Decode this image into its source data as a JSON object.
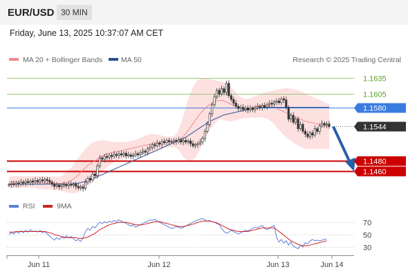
{
  "header": {
    "symbol": "EUR/USD",
    "timeframe": "30 MIN"
  },
  "datetime": "Friday, June 13, 2025 10:37:07 AM CET",
  "legend": {
    "items": [
      {
        "label": "MA 20 + Bollinger Bands",
        "color": "#f08a8a"
      },
      {
        "label": "MA 50",
        "color": "#2a4f8f"
      }
    ],
    "credit": "Research © 2025 Trading Central"
  },
  "colors": {
    "candle": "#333333",
    "ma20": "#f08a8a",
    "band_fill": "#fde0e0",
    "ma50": "#3a5f9f",
    "resistance": "#99c87a",
    "resistance_text": "#5a9e2a",
    "pivot": "#3a7be0",
    "support": "#cc0000",
    "rsi": "#5b7fd6",
    "rsi_ma": "#cc2222"
  },
  "chart_data": [
    {
      "type": "candlestick",
      "title": "EUR/USD",
      "timeframe": "30 MIN",
      "x_ticks": [
        "Jun 11",
        "Jun 12",
        "Jun 13",
        "Jun 14"
      ],
      "ylim": [
        1.1432,
        1.1652
      ],
      "current_price": 1.1544,
      "levels": [
        {
          "label": "1.1635",
          "value": 1.1635,
          "kind": "resistance"
        },
        {
          "label": "1.1605",
          "value": 1.1605,
          "kind": "resistance"
        },
        {
          "label": "1.1580",
          "value": 1.158,
          "kind": "pivot"
        },
        {
          "label": "1.1480",
          "value": 1.148,
          "kind": "support"
        },
        {
          "label": "1.1460",
          "value": 1.146,
          "kind": "support"
        }
      ],
      "closes": [
        1.1435,
        1.1437,
        1.1435,
        1.1438,
        1.1436,
        1.144,
        1.1438,
        1.1441,
        1.1439,
        1.1442,
        1.144,
        1.1443,
        1.1441,
        1.1444,
        1.1442,
        1.1445,
        1.1443,
        1.144,
        1.1436,
        1.1432,
        1.1434,
        1.1431,
        1.1433,
        1.1435,
        1.1433,
        1.1436,
        1.1434,
        1.1436,
        1.1432,
        1.1429,
        1.1431,
        1.1428,
        1.144,
        1.1447,
        1.1444,
        1.1455,
        1.1452,
        1.147,
        1.1485,
        1.1483,
        1.1488,
        1.1486,
        1.149,
        1.1488,
        1.1492,
        1.149,
        1.1493,
        1.1491,
        1.1494,
        1.1489,
        1.1491,
        1.1488,
        1.149,
        1.1493,
        1.1491,
        1.1495,
        1.1498,
        1.1496,
        1.1502,
        1.1505,
        1.151,
        1.1508,
        1.1513,
        1.1511,
        1.1516,
        1.1514,
        1.1518,
        1.1516,
        1.1515,
        1.1518,
        1.1516,
        1.1519,
        1.1515,
        1.1518,
        1.1515,
        1.1517,
        1.1512,
        1.1508,
        1.151,
        1.1512,
        1.1515,
        1.1522,
        1.1535,
        1.1548,
        1.1568,
        1.1585,
        1.16,
        1.1612,
        1.1605,
        1.1615,
        1.1608,
        1.1625,
        1.1602,
        1.1595,
        1.1588,
        1.1582,
        1.1578,
        1.158,
        1.1576,
        1.1579,
        1.1575,
        1.1578,
        1.1576,
        1.1579,
        1.1582,
        1.158,
        1.1583,
        1.1581,
        1.1585,
        1.1588,
        1.1586,
        1.159,
        1.1592,
        1.1589,
        1.1596,
        1.1594,
        1.158,
        1.1558,
        1.1565,
        1.1552,
        1.1558,
        1.154,
        1.1548,
        1.1535,
        1.153,
        1.1525,
        1.1532,
        1.1528,
        1.154,
        1.1535,
        1.1545,
        1.155,
        1.1547,
        1.1549,
        1.1544
      ],
      "ma20": [
        1.144,
        1.144,
        1.144,
        1.144,
        1.144,
        1.144,
        1.144,
        1.144,
        1.144,
        1.144,
        1.144,
        1.144,
        1.1439,
        1.1439,
        1.1439,
        1.1438,
        1.1438,
        1.1438,
        1.1438,
        1.1437,
        1.1437,
        1.1437,
        1.1437,
        1.1438,
        1.1439,
        1.1441,
        1.1443,
        1.1446,
        1.1449,
        1.1453,
        1.1458,
        1.1463,
        1.1467,
        1.1471,
        1.1474,
        1.1477,
        1.148,
        1.1483,
        1.1486,
        1.1489,
        1.1491,
        1.1493,
        1.1494,
        1.1495,
        1.1496,
        1.1497,
        1.1498,
        1.1499,
        1.15,
        1.1501,
        1.1502,
        1.1503,
        1.1504,
        1.1505,
        1.1506,
        1.1507,
        1.1508,
        1.1509,
        1.151,
        1.1511,
        1.1512,
        1.1513,
        1.1513,
        1.1514,
        1.1514,
        1.1515,
        1.1515,
        1.1515,
        1.1515,
        1.1516,
        1.1517,
        1.1519,
        1.1522,
        1.1526,
        1.1531,
        1.1537,
        1.1543,
        1.155,
        1.1556,
        1.1562,
        1.1568,
        1.1573,
        1.1578,
        1.1582,
        1.1585,
        1.1588,
        1.159,
        1.1592,
        1.1593,
        1.1593,
        1.1592,
        1.159,
        1.1588,
        1.1586,
        1.1584,
        1.1582,
        1.158,
        1.1579,
        1.1578,
        1.1578,
        1.1578,
        1.1579,
        1.158,
        1.1581,
        1.1582,
        1.1583,
        1.1584,
        1.1584,
        1.1584,
        1.1583,
        1.1582,
        1.158,
        1.1578,
        1.1576,
        1.1574,
        1.1572,
        1.157,
        1.1568,
        1.1566,
        1.1564,
        1.1562,
        1.156,
        1.1558,
        1.1556,
        1.1554,
        1.1553,
        1.1552,
        1.1551,
        1.155,
        1.1549,
        1.1548,
        1.1547,
        1.1546,
        1.1545,
        1.1544
      ],
      "ma50": [
        1.1436,
        1.1436,
        1.1436,
        1.1436,
        1.1436,
        1.1436,
        1.1436,
        1.1436,
        1.1436,
        1.1436,
        1.1436,
        1.1436,
        1.1436,
        1.1436,
        1.1436,
        1.1436,
        1.1436,
        1.1436,
        1.1436,
        1.1436,
        1.1436,
        1.1436,
        1.1436,
        1.1436,
        1.1436,
        1.1436,
        1.1436,
        1.1437,
        1.1437,
        1.1438,
        1.1439,
        1.144,
        1.1441,
        1.1442,
        1.1444,
        1.1446,
        1.1448,
        1.145,
        1.1452,
        1.1454,
        1.1456,
        1.1458,
        1.146,
        1.1462,
        1.1464,
        1.1466,
        1.1468,
        1.147,
        1.1472,
        1.1474,
        1.1476,
        1.1478,
        1.148,
        1.1482,
        1.1484,
        1.1486,
        1.1488,
        1.149,
        1.1492,
        1.1494,
        1.1496,
        1.1498,
        1.15,
        1.1502,
        1.1504,
        1.1506,
        1.1508,
        1.151,
        1.1512,
        1.1514,
        1.1516,
        1.1518,
        1.152,
        1.1522,
        1.1524,
        1.1527,
        1.153,
        1.1533,
        1.1536,
        1.1539,
        1.1542,
        1.1545,
        1.1548,
        1.1551,
        1.1554,
        1.1556,
        1.1558,
        1.156,
        1.1562,
        1.1564,
        1.1566,
        1.1567,
        1.1568,
        1.1569,
        1.157,
        1.1571,
        1.1572,
        1.1573,
        1.1574,
        1.1575,
        1.1576,
        1.1577,
        1.1578,
        1.1578,
        1.1579,
        1.1579,
        1.158,
        1.158,
        1.158,
        1.158,
        1.158,
        1.158,
        1.158,
        1.158,
        1.158,
        1.158,
        1.158,
        1.158,
        1.158,
        1.158,
        1.158,
        1.158,
        1.158,
        1.158,
        1.158,
        1.158,
        1.158,
        1.158,
        1.158,
        1.158,
        1.158,
        1.158,
        1.158,
        1.158,
        1.158
      ],
      "band_upper": [
        1.145,
        1.145,
        1.1451,
        1.1451,
        1.1451,
        1.1451,
        1.1451,
        1.1451,
        1.1451,
        1.1451,
        1.1451,
        1.1451,
        1.1451,
        1.1451,
        1.1451,
        1.145,
        1.145,
        1.145,
        1.145,
        1.145,
        1.145,
        1.145,
        1.1451,
        1.1454,
        1.1458,
        1.1462,
        1.1467,
        1.1473,
        1.1479,
        1.1485,
        1.1491,
        1.1497,
        1.1502,
        1.1507,
        1.1511,
        1.1514,
        1.1516,
        1.1517,
        1.1518,
        1.1518,
        1.1518,
        1.1518,
        1.1517,
        1.1516,
        1.1515,
        1.1515,
        1.1515,
        1.1515,
        1.1515,
        1.1515,
        1.1516,
        1.1517,
        1.1518,
        1.1519,
        1.1521,
        1.1523,
        1.1525,
        1.1527,
        1.1529,
        1.153,
        1.153,
        1.153,
        1.1529,
        1.1528,
        1.1527,
        1.1526,
        1.1525,
        1.1525,
        1.1525,
        1.1526,
        1.153,
        1.1538,
        1.155,
        1.1565,
        1.158,
        1.1595,
        1.1608,
        1.1618,
        1.1626,
        1.1631,
        1.1634,
        1.1635,
        1.1635,
        1.1634,
        1.1633,
        1.1632,
        1.1631,
        1.163,
        1.1629,
        1.1628,
        1.1627,
        1.1625,
        1.1622,
        1.1618,
        1.1613,
        1.1608,
        1.1603,
        1.1599,
        1.1597,
        1.1596,
        1.1596,
        1.1597,
        1.1599,
        1.1601,
        1.1603,
        1.1605,
        1.1607,
        1.1608,
        1.1609,
        1.161,
        1.1611,
        1.1612,
        1.1613,
        1.1614,
        1.1615,
        1.1616,
        1.1616,
        1.1616,
        1.1615,
        1.1614,
        1.1613,
        1.1612,
        1.161,
        1.1608,
        1.1606,
        1.1604,
        1.1602,
        1.16,
        1.1598,
        1.1596,
        1.1594,
        1.1592,
        1.159,
        1.1588,
        1.1586
      ],
      "band_lower": [
        1.143,
        1.143,
        1.1429,
        1.1429,
        1.1429,
        1.1429,
        1.1429,
        1.1429,
        1.1429,
        1.1429,
        1.1429,
        1.1429,
        1.1427,
        1.1427,
        1.1427,
        1.1426,
        1.1426,
        1.1426,
        1.1426,
        1.1424,
        1.1424,
        1.1424,
        1.1423,
        1.1422,
        1.142,
        1.142,
        1.1419,
        1.1419,
        1.1419,
        1.1421,
        1.1425,
        1.1429,
        1.1432,
        1.1435,
        1.1437,
        1.144,
        1.1444,
        1.1449,
        1.1454,
        1.146,
        1.1464,
        1.1468,
        1.1471,
        1.1474,
        1.1477,
        1.1479,
        1.1481,
        1.1483,
        1.1485,
        1.1487,
        1.1488,
        1.1489,
        1.149,
        1.1491,
        1.1491,
        1.1491,
        1.1491,
        1.1491,
        1.1491,
        1.1492,
        1.1494,
        1.1496,
        1.1497,
        1.15,
        1.1501,
        1.1504,
        1.1505,
        1.1505,
        1.1505,
        1.1506,
        1.1504,
        1.15,
        1.1494,
        1.1487,
        1.1482,
        1.1479,
        1.1478,
        1.1482,
        1.1486,
        1.1493,
        1.1502,
        1.1511,
        1.1521,
        1.153,
        1.1537,
        1.1544,
        1.1549,
        1.1554,
        1.1557,
        1.1558,
        1.1557,
        1.1555,
        1.1554,
        1.1554,
        1.1555,
        1.1556,
        1.1557,
        1.1559,
        1.1559,
        1.156,
        1.156,
        1.1561,
        1.1561,
        1.1561,
        1.1561,
        1.1561,
        1.1561,
        1.156,
        1.1559,
        1.1556,
        1.1553,
        1.1548,
        1.1543,
        1.1538,
        1.1533,
        1.1528,
        1.1524,
        1.152,
        1.1517,
        1.1514,
        1.1511,
        1.1508,
        1.1506,
        1.1504,
        1.1502,
        1.1502,
        1.1502,
        1.1502,
        1.1502,
        1.1502,
        1.1502,
        1.1502,
        1.1502,
        1.1502,
        1.1502
      ]
    },
    {
      "type": "line",
      "title": "RSI",
      "legend": [
        "RSI",
        "9MA"
      ],
      "ylim": [
        22,
        78
      ],
      "y_ticks": [
        70,
        50,
        30
      ],
      "series": [
        {
          "name": "RSI",
          "values": [
            50,
            53,
            51,
            55,
            52,
            56,
            53,
            57,
            54,
            58,
            55,
            56,
            54,
            57,
            53,
            55,
            51,
            48,
            44,
            41,
            45,
            42,
            46,
            44,
            48,
            45,
            47,
            43,
            40,
            42,
            39,
            45,
            55,
            60,
            57,
            63,
            61,
            66,
            70,
            68,
            71,
            69,
            72,
            70,
            73,
            71,
            74,
            72,
            70,
            68,
            66,
            64,
            66,
            62,
            64,
            66,
            68,
            70,
            72,
            74,
            73,
            75,
            72,
            70,
            68,
            66,
            64,
            62,
            60,
            61,
            63,
            62,
            60,
            62,
            64,
            66,
            68,
            70,
            72,
            74,
            75,
            76,
            74,
            72,
            73,
            71,
            70,
            68,
            66,
            60,
            55,
            52,
            54,
            57,
            55,
            53,
            51,
            53,
            55,
            57,
            56,
            58,
            60,
            62,
            61,
            63,
            65,
            60,
            58,
            60,
            63,
            65,
            45,
            38,
            42,
            36,
            40,
            33,
            38,
            31,
            29,
            27,
            33,
            30,
            37,
            35,
            40,
            42,
            40,
            41,
            40,
            41,
            42,
            43
          ]
        },
        {
          "name": "9MA",
          "values": [
            54,
            54,
            54,
            55,
            55,
            55,
            55,
            55,
            55,
            55,
            55,
            55,
            55,
            55,
            55,
            55,
            54,
            53,
            52,
            50,
            49,
            48,
            47,
            46,
            45,
            45,
            45,
            45,
            45,
            44,
            44,
            44,
            45,
            46,
            48,
            50,
            52,
            55,
            58,
            60,
            62,
            64,
            66,
            67,
            68,
            69,
            70,
            70,
            70,
            70,
            69,
            68,
            67,
            66,
            66,
            66,
            66,
            67,
            68,
            69,
            70,
            71,
            71,
            71,
            70,
            69,
            68,
            67,
            66,
            65,
            64,
            63,
            63,
            63,
            64,
            65,
            66,
            67,
            68,
            70,
            71,
            72,
            72,
            72,
            72,
            71,
            70,
            69,
            67,
            65,
            63,
            61,
            59,
            58,
            57,
            56,
            55,
            55,
            55,
            55,
            55,
            56,
            57,
            58,
            59,
            60,
            61,
            61,
            61,
            61,
            61,
            61,
            58,
            55,
            52,
            49,
            46,
            43,
            40,
            38,
            36,
            34,
            33,
            32,
            32,
            32,
            33,
            34,
            35,
            36,
            37,
            38,
            39,
            40
          ]
        }
      ]
    }
  ]
}
